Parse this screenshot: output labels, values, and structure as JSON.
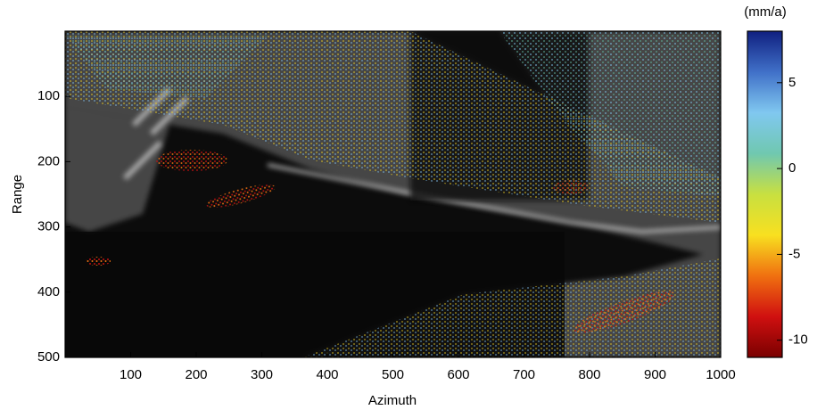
{
  "chart_data": {
    "type": "image",
    "xlabel": "Azimuth",
    "ylabel": "Range",
    "xlim": [
      0,
      1000
    ],
    "xticks": [
      100,
      200,
      300,
      400,
      500,
      600,
      700,
      800,
      900,
      1000
    ],
    "ylim": [
      0,
      500
    ],
    "yticks": [
      100,
      200,
      300,
      400,
      500
    ],
    "y_inverted": true,
    "colorbar": {
      "label": "(mm/a)",
      "lim": [
        -11,
        8
      ],
      "ticks": [
        -10,
        -5,
        0,
        5
      ],
      "colors": [
        "#7a0000",
        "#d01010",
        "#f07010",
        "#f8e020",
        "#c8e040",
        "#70c8b0",
        "#80c8f0",
        "#4070c8",
        "#102080"
      ]
    }
  }
}
